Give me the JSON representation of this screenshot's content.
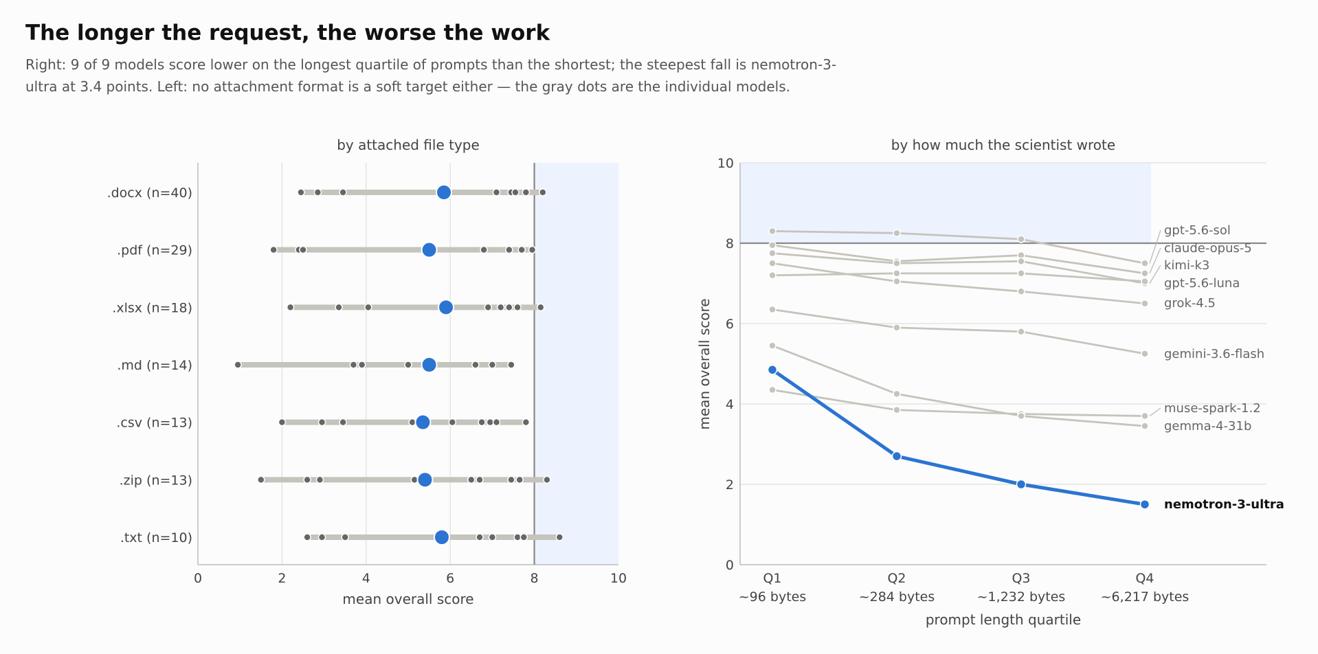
{
  "title": "The longer the request, the worse the work",
  "subtitle": "Right: 9 of 9 models score lower on the longest quartile of prompts than the shortest; the steepest fall is nemotron-3-ultra at 3.4 points. Left: no attachment format is a soft target either — the gray dots are the individual models.",
  "colors": {
    "highlight": "#2b74d1",
    "muted_line": "#c4c4bc",
    "model_dot": "#666666",
    "band": "#edf3fe",
    "threshold": "#888888"
  },
  "chart_data": [
    {
      "type": "dot-range",
      "title": "by attached file type",
      "xlabel": "mean overall score",
      "xlim": [
        0,
        10
      ],
      "xticks": [
        "0",
        "2",
        "4",
        "6",
        "8",
        "10"
      ],
      "threshold": 8,
      "shaded_range": [
        8,
        10
      ],
      "grid": true,
      "categories": [
        {
          "label": ".docx  (n=40)",
          "mean": 5.85,
          "models": [
            2.45,
            2.85,
            3.45,
            7.1,
            7.45,
            7.55,
            7.8,
            8.2
          ]
        },
        {
          "label": ".pdf  (n=29)",
          "mean": 5.5,
          "models": [
            1.8,
            2.4,
            2.5,
            6.8,
            7.4,
            7.7,
            7.95
          ]
        },
        {
          "label": ".xlsx  (n=18)",
          "mean": 5.9,
          "models": [
            2.2,
            3.35,
            4.05,
            6.9,
            7.2,
            7.4,
            7.6,
            8.15
          ]
        },
        {
          "label": ".md  (n=14)",
          "mean": 5.5,
          "models": [
            0.95,
            3.7,
            3.9,
            5.0,
            6.6,
            7.0,
            7.45
          ]
        },
        {
          "label": ".csv  (n=13)",
          "mean": 5.35,
          "models": [
            2.0,
            2.95,
            3.45,
            5.1,
            6.05,
            6.75,
            6.95,
            7.1,
            7.8
          ]
        },
        {
          "label": ".zip  (n=13)",
          "mean": 5.4,
          "models": [
            1.5,
            2.6,
            2.9,
            5.15,
            6.5,
            6.7,
            7.45,
            7.65,
            8.3
          ]
        },
        {
          "label": ".txt  (n=10)",
          "mean": 5.8,
          "models": [
            2.6,
            2.95,
            3.5,
            6.7,
            7.0,
            7.6,
            7.75,
            8.6
          ]
        }
      ]
    },
    {
      "type": "line",
      "title": "by how much the scientist wrote",
      "xlabel": "prompt length quartile",
      "ylabel": "mean overall score",
      "ylim": [
        0,
        10
      ],
      "yticks": [
        "0",
        "2",
        "4",
        "6",
        "8",
        "10"
      ],
      "threshold": 8,
      "shaded_range": [
        8,
        10
      ],
      "grid": true,
      "categories": [
        "Q1",
        "Q2",
        "Q3",
        "Q4"
      ],
      "category_sublabels": [
        "~96 bytes",
        "~284 bytes",
        "~1,232 bytes",
        "~6,217 bytes"
      ],
      "series": [
        {
          "name": "gpt-5.6-sol",
          "values": [
            8.3,
            8.25,
            8.1,
            7.5
          ],
          "highlight": false
        },
        {
          "name": "claude-opus-5",
          "values": [
            7.95,
            7.55,
            7.7,
            7.25
          ],
          "highlight": false
        },
        {
          "name": "kimi-k3",
          "values": [
            7.75,
            7.5,
            7.55,
            7.0
          ],
          "highlight": false
        },
        {
          "name": "gpt-5.6-luna",
          "values": [
            7.2,
            7.25,
            7.25,
            7.05
          ],
          "highlight": false
        },
        {
          "name": "grok-4.5",
          "values": [
            7.5,
            7.05,
            6.8,
            6.5
          ],
          "highlight": false
        },
        {
          "name": "gemini-3.6-flash",
          "values": [
            6.35,
            5.9,
            5.8,
            5.25
          ],
          "highlight": false
        },
        {
          "name": "muse-spark-1.2",
          "values": [
            4.35,
            3.85,
            3.75,
            3.7
          ],
          "highlight": false
        },
        {
          "name": "gemma-4-31b",
          "values": [
            5.45,
            4.25,
            3.7,
            3.45
          ],
          "highlight": false
        },
        {
          "name": "nemotron-3-ultra",
          "values": [
            4.85,
            2.7,
            2.0,
            1.5
          ],
          "highlight": true
        }
      ]
    }
  ]
}
